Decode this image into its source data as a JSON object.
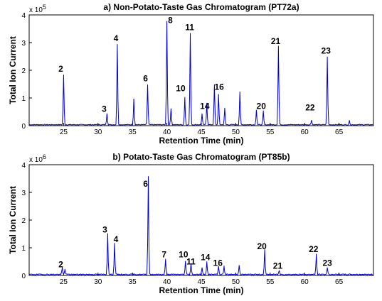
{
  "chart_data": [
    {
      "type": "line",
      "title": "a) Non-Potato-Taste Gas Chromatogram (PT72a)",
      "xlabel": "Retention Time (min)",
      "ylabel": "Total Ion Current",
      "y_exponent": "x 10",
      "y_exponent_power": "5",
      "xlim": [
        20,
        70
      ],
      "ylim": [
        0,
        4
      ],
      "xticks": [
        25,
        30,
        35,
        40,
        45,
        50,
        55,
        60,
        65
      ],
      "yticks": [
        0,
        1,
        2,
        3,
        4
      ],
      "grid": false,
      "color": "#0000cc",
      "peaks": [
        {
          "x": 25.0,
          "y": 1.8
        },
        {
          "x": 31.3,
          "y": 0.42
        },
        {
          "x": 32.8,
          "y": 2.9
        },
        {
          "x": 35.2,
          "y": 0.95
        },
        {
          "x": 37.2,
          "y": 1.45
        },
        {
          "x": 40.0,
          "y": 3.75
        },
        {
          "x": 40.6,
          "y": 0.6
        },
        {
          "x": 42.6,
          "y": 1.0
        },
        {
          "x": 43.4,
          "y": 3.3
        },
        {
          "x": 45.1,
          "y": 0.4
        },
        {
          "x": 45.8,
          "y": 0.8
        },
        {
          "x": 46.9,
          "y": 1.45
        },
        {
          "x": 47.5,
          "y": 1.1
        },
        {
          "x": 48.4,
          "y": 0.6
        },
        {
          "x": 50.6,
          "y": 1.2
        },
        {
          "x": 53.0,
          "y": 0.55
        },
        {
          "x": 54.0,
          "y": 0.5
        },
        {
          "x": 56.2,
          "y": 2.85
        },
        {
          "x": 61.0,
          "y": 0.18
        },
        {
          "x": 63.3,
          "y": 2.45
        },
        {
          "x": 66.5,
          "y": 0.15
        }
      ],
      "peak_labels": [
        {
          "text": "2",
          "x": 24.6,
          "y": 1.95
        },
        {
          "text": "3",
          "x": 30.9,
          "y": 0.5
        },
        {
          "text": "4",
          "x": 32.6,
          "y": 3.05
        },
        {
          "text": "6",
          "x": 36.9,
          "y": 1.6
        },
        {
          "text": "8",
          "x": 40.5,
          "y": 3.7
        },
        {
          "text": "11",
          "x": 43.3,
          "y": 3.45
        },
        {
          "text": "10",
          "x": 42.0,
          "y": 1.25
        },
        {
          "text": "14",
          "x": 45.5,
          "y": 0.6
        },
        {
          "text": "16",
          "x": 47.6,
          "y": 1.3
        },
        {
          "text": "20",
          "x": 53.7,
          "y": 0.6
        },
        {
          "text": "21",
          "x": 55.8,
          "y": 2.95
        },
        {
          "text": "22",
          "x": 60.8,
          "y": 0.55
        },
        {
          "text": "23",
          "x": 63.1,
          "y": 2.6
        }
      ]
    },
    {
      "type": "line",
      "title": "b) Potato-Taste Gas Chromatogram (PT85b)",
      "xlabel": "Retention Time (min)",
      "ylabel": "Total Ion Current",
      "y_exponent": "x 10",
      "y_exponent_power": "6",
      "xlim": [
        20,
        70
      ],
      "ylim": [
        0,
        4
      ],
      "xticks": [
        25,
        30,
        35,
        40,
        45,
        50,
        55,
        60,
        65
      ],
      "yticks": [
        0,
        1,
        2,
        3,
        4
      ],
      "grid": false,
      "color": "#0000cc",
      "peaks": [
        {
          "x": 24.8,
          "y": 0.25
        },
        {
          "x": 25.2,
          "y": 0.2
        },
        {
          "x": 31.4,
          "y": 1.5
        },
        {
          "x": 32.4,
          "y": 1.15
        },
        {
          "x": 37.3,
          "y": 3.55
        },
        {
          "x": 39.8,
          "y": 0.55
        },
        {
          "x": 42.7,
          "y": 0.5
        },
        {
          "x": 43.5,
          "y": 0.4
        },
        {
          "x": 45.1,
          "y": 0.25
        },
        {
          "x": 45.8,
          "y": 0.45
        },
        {
          "x": 47.5,
          "y": 0.3
        },
        {
          "x": 48.3,
          "y": 0.3
        },
        {
          "x": 50.5,
          "y": 0.35
        },
        {
          "x": 54.2,
          "y": 0.9
        },
        {
          "x": 56.3,
          "y": 0.15
        },
        {
          "x": 61.7,
          "y": 0.75
        },
        {
          "x": 63.3,
          "y": 0.25
        }
      ],
      "peak_labels": [
        {
          "text": "2",
          "x": 24.6,
          "y": 0.3
        },
        {
          "text": "3",
          "x": 31.0,
          "y": 1.55
        },
        {
          "text": "4",
          "x": 32.6,
          "y": 1.2
        },
        {
          "text": "6",
          "x": 36.9,
          "y": 3.2
        },
        {
          "text": "7",
          "x": 39.6,
          "y": 0.65
        },
        {
          "text": "10",
          "x": 42.4,
          "y": 0.65
        },
        {
          "text": "11",
          "x": 43.5,
          "y": 0.4
        },
        {
          "text": "14",
          "x": 45.6,
          "y": 0.55
        },
        {
          "text": "16",
          "x": 47.4,
          "y": 0.35
        },
        {
          "text": "20",
          "x": 53.8,
          "y": 0.95
        },
        {
          "text": "21",
          "x": 56.1,
          "y": 0.25
        },
        {
          "text": "22",
          "x": 61.3,
          "y": 0.85
        },
        {
          "text": "23",
          "x": 63.3,
          "y": 0.35
        }
      ]
    }
  ]
}
